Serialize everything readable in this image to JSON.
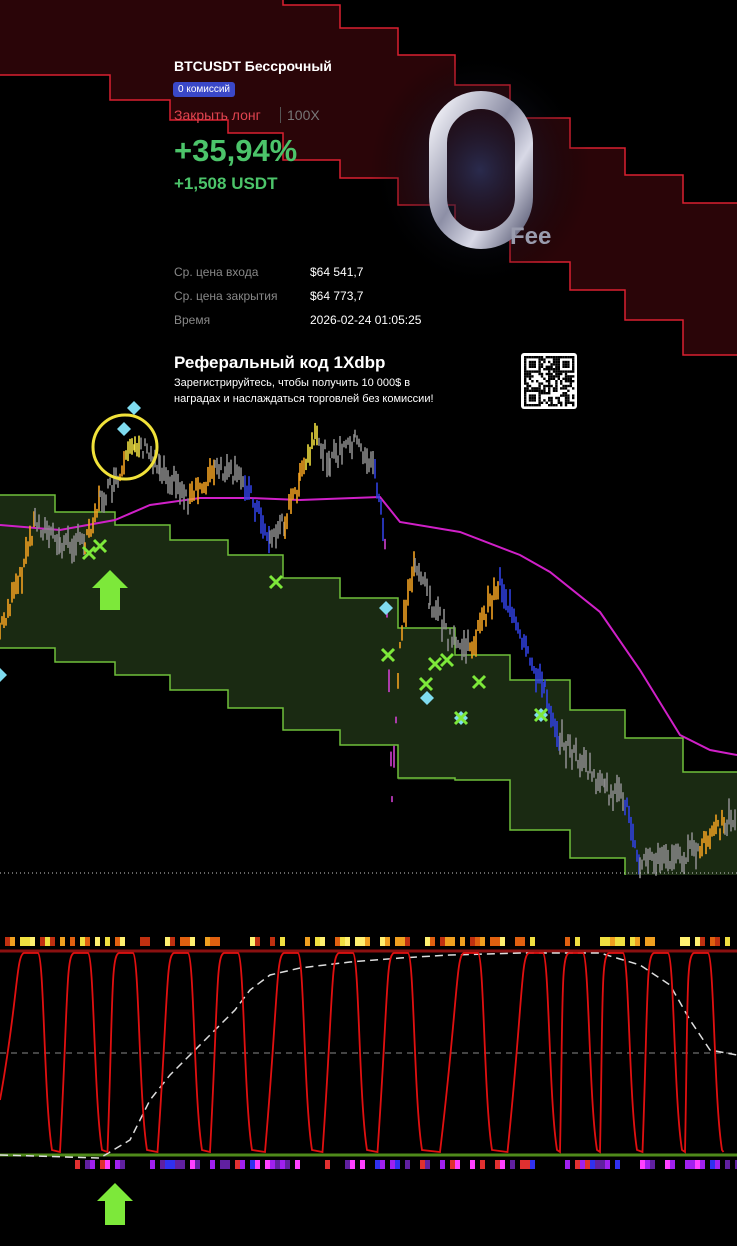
{
  "card": {
    "symbol": "BTCUSDT Бессрочный",
    "badge": "0 комиссий",
    "action": "Закрыть лонг",
    "leverage": "100X",
    "pnl_percent": "+35,94%",
    "pnl_amount": "+1,508 USDT",
    "details": [
      {
        "label": "Ср. цена входа",
        "value": "$64 541,7"
      },
      {
        "label": "Ср. цена закрытия",
        "value": "$64 773,7"
      },
      {
        "label": "Время",
        "value": "2026-02-24 01:05:25"
      }
    ],
    "fee_digit": "0",
    "fee_word": "Fee"
  },
  "referral": {
    "title": "Реферальный код 1Xdbp",
    "lines": [
      "Зарегистрируйтесь, чтобы получить 10 000$ в",
      "наградах и наслаждаться торговлей без комиссии!"
    ]
  }
}
